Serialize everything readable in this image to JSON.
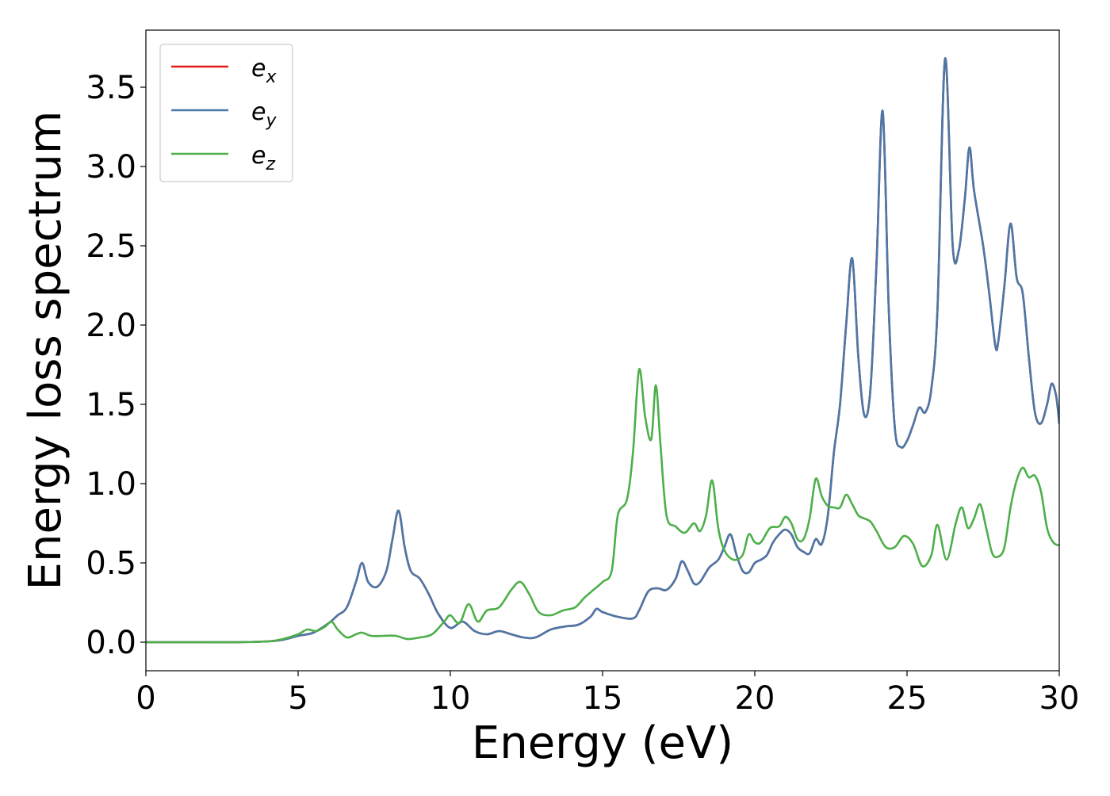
{
  "chart_data": {
    "type": "line",
    "title": "",
    "xlabel": "Energy (eV)",
    "ylabel": "Energy loss spectrum",
    "xlim": [
      0,
      30
    ],
    "ylim": [
      -0.18,
      3.86
    ],
    "xticks": [
      0,
      5,
      10,
      15,
      20,
      25,
      30
    ],
    "xtick_labels": [
      "0",
      "5",
      "10",
      "15",
      "20",
      "25",
      "30"
    ],
    "yticks": [
      0.0,
      0.5,
      1.0,
      1.5,
      2.0,
      2.5,
      3.0,
      3.5
    ],
    "ytick_labels": [
      "0.0",
      "0.5",
      "1.0",
      "1.5",
      "2.0",
      "2.5",
      "3.0",
      "3.5"
    ],
    "grid": false,
    "legend_position": "top-left",
    "series": [
      {
        "name": "e_x",
        "legend_base": "e",
        "legend_sub": "x",
        "color": "#e41a1c",
        "x": [
          0,
          1,
          2,
          3,
          4,
          4.5,
          5,
          5.5,
          6,
          6.3,
          6.6,
          6.9,
          7.1,
          7.3,
          7.6,
          7.9,
          8.1,
          8.3,
          8.5,
          8.7,
          9.0,
          9.3,
          9.6,
          10.0,
          10.4,
          10.8,
          11.2,
          11.6,
          12.0,
          12.4,
          12.8,
          13.3,
          13.8,
          14.2,
          14.6,
          14.8,
          15.0,
          15.5,
          16.0,
          16.2,
          16.5,
          16.8,
          17.1,
          17.4,
          17.6,
          17.8,
          18.0,
          18.2,
          18.5,
          18.8,
          19.0,
          19.2,
          19.4,
          19.6,
          19.8,
          20.0,
          20.2,
          20.4,
          20.6,
          20.8,
          21.0,
          21.2,
          21.4,
          21.6,
          21.8,
          22.0,
          22.2,
          22.4,
          22.6,
          22.8,
          23.0,
          23.2,
          23.4,
          23.6,
          23.8,
          24.0,
          24.2,
          24.4,
          24.6,
          24.8,
          25.0,
          25.2,
          25.4,
          25.6,
          25.8,
          26.0,
          26.25,
          26.5,
          26.7,
          26.9,
          27.05,
          27.2,
          27.5,
          27.7,
          27.9,
          28.0,
          28.2,
          28.4,
          28.6,
          28.8,
          29.0,
          29.2,
          29.4,
          29.6,
          29.75,
          29.9,
          30.0
        ],
        "y": [
          0.0,
          0.0,
          0.0,
          0.0,
          0.005,
          0.015,
          0.04,
          0.06,
          0.12,
          0.17,
          0.22,
          0.38,
          0.5,
          0.38,
          0.35,
          0.45,
          0.65,
          0.83,
          0.6,
          0.45,
          0.4,
          0.3,
          0.18,
          0.09,
          0.13,
          0.07,
          0.05,
          0.07,
          0.05,
          0.03,
          0.03,
          0.08,
          0.1,
          0.11,
          0.16,
          0.21,
          0.19,
          0.16,
          0.15,
          0.2,
          0.32,
          0.34,
          0.33,
          0.4,
          0.51,
          0.45,
          0.37,
          0.38,
          0.47,
          0.52,
          0.6,
          0.68,
          0.55,
          0.45,
          0.44,
          0.5,
          0.52,
          0.55,
          0.63,
          0.68,
          0.71,
          0.68,
          0.6,
          0.57,
          0.56,
          0.65,
          0.62,
          0.8,
          1.2,
          1.5,
          2.0,
          2.42,
          1.8,
          1.43,
          1.6,
          2.4,
          3.35,
          2.1,
          1.35,
          1.23,
          1.27,
          1.37,
          1.48,
          1.45,
          1.6,
          2.1,
          3.68,
          2.5,
          2.47,
          2.8,
          3.12,
          2.85,
          2.5,
          2.2,
          1.87,
          1.9,
          2.25,
          2.64,
          2.3,
          2.2,
          1.8,
          1.45,
          1.38,
          1.5,
          1.63,
          1.55,
          1.38
        ]
      },
      {
        "name": "e_y",
        "legend_base": "e",
        "legend_sub": "y",
        "color": "#4a78a8",
        "x": [
          0,
          1,
          2,
          3,
          4,
          4.5,
          5,
          5.5,
          6,
          6.3,
          6.6,
          6.9,
          7.1,
          7.3,
          7.6,
          7.9,
          8.1,
          8.3,
          8.5,
          8.7,
          9.0,
          9.3,
          9.6,
          10.0,
          10.4,
          10.8,
          11.2,
          11.6,
          12.0,
          12.4,
          12.8,
          13.3,
          13.8,
          14.2,
          14.6,
          14.8,
          15.0,
          15.5,
          16.0,
          16.2,
          16.5,
          16.8,
          17.1,
          17.4,
          17.6,
          17.8,
          18.0,
          18.2,
          18.5,
          18.8,
          19.0,
          19.2,
          19.4,
          19.6,
          19.8,
          20.0,
          20.2,
          20.4,
          20.6,
          20.8,
          21.0,
          21.2,
          21.4,
          21.6,
          21.8,
          22.0,
          22.2,
          22.4,
          22.6,
          22.8,
          23.0,
          23.2,
          23.4,
          23.6,
          23.8,
          24.0,
          24.2,
          24.4,
          24.6,
          24.8,
          25.0,
          25.2,
          25.4,
          25.6,
          25.8,
          26.0,
          26.25,
          26.5,
          26.7,
          26.9,
          27.05,
          27.2,
          27.5,
          27.7,
          27.9,
          28.0,
          28.2,
          28.4,
          28.6,
          28.8,
          29.0,
          29.2,
          29.4,
          29.6,
          29.75,
          29.9,
          30.0
        ],
        "y": [
          0.0,
          0.0,
          0.0,
          0.0,
          0.005,
          0.015,
          0.04,
          0.06,
          0.12,
          0.17,
          0.22,
          0.38,
          0.5,
          0.38,
          0.35,
          0.45,
          0.65,
          0.83,
          0.6,
          0.45,
          0.4,
          0.3,
          0.18,
          0.09,
          0.13,
          0.07,
          0.05,
          0.07,
          0.05,
          0.03,
          0.03,
          0.08,
          0.1,
          0.11,
          0.16,
          0.21,
          0.19,
          0.16,
          0.15,
          0.2,
          0.32,
          0.34,
          0.33,
          0.4,
          0.51,
          0.45,
          0.37,
          0.38,
          0.47,
          0.52,
          0.6,
          0.68,
          0.55,
          0.45,
          0.44,
          0.5,
          0.52,
          0.55,
          0.63,
          0.68,
          0.71,
          0.68,
          0.6,
          0.57,
          0.56,
          0.65,
          0.62,
          0.8,
          1.2,
          1.5,
          2.0,
          2.42,
          1.8,
          1.43,
          1.6,
          2.4,
          3.35,
          2.1,
          1.35,
          1.23,
          1.27,
          1.37,
          1.48,
          1.45,
          1.6,
          2.1,
          3.68,
          2.5,
          2.47,
          2.8,
          3.12,
          2.85,
          2.5,
          2.2,
          1.87,
          1.9,
          2.25,
          2.64,
          2.3,
          2.2,
          1.8,
          1.45,
          1.38,
          1.5,
          1.63,
          1.55,
          1.38
        ]
      },
      {
        "name": "e_z",
        "legend_base": "e",
        "legend_sub": "z",
        "color": "#4daf4a",
        "x": [
          0,
          1,
          2,
          3,
          4,
          4.5,
          5,
          5.3,
          5.6,
          5.9,
          6.1,
          6.3,
          6.6,
          6.9,
          7.1,
          7.4,
          7.8,
          8.2,
          8.6,
          9.0,
          9.4,
          9.8,
          10.0,
          10.3,
          10.6,
          10.9,
          11.2,
          11.6,
          12.0,
          12.3,
          12.6,
          12.9,
          13.3,
          13.7,
          14.1,
          14.4,
          14.7,
          15.0,
          15.3,
          15.5,
          15.8,
          16.0,
          16.2,
          16.4,
          16.6,
          16.75,
          16.9,
          17.1,
          17.4,
          17.7,
          18.0,
          18.2,
          18.4,
          18.6,
          18.8,
          19.0,
          19.3,
          19.6,
          19.8,
          20.0,
          20.2,
          20.5,
          20.8,
          21.0,
          21.2,
          21.4,
          21.6,
          21.8,
          22.0,
          22.2,
          22.4,
          22.6,
          22.8,
          23.0,
          23.2,
          23.4,
          23.6,
          23.8,
          24.0,
          24.3,
          24.6,
          24.9,
          25.2,
          25.5,
          25.8,
          26.0,
          26.3,
          26.6,
          26.8,
          27.0,
          27.2,
          27.4,
          27.6,
          27.8,
          28.0,
          28.2,
          28.4,
          28.6,
          28.8,
          29.0,
          29.2,
          29.4,
          29.6,
          29.8,
          30.0
        ],
        "y": [
          0.0,
          0.0,
          0.0,
          0.0,
          0.005,
          0.02,
          0.05,
          0.08,
          0.07,
          0.1,
          0.13,
          0.08,
          0.03,
          0.05,
          0.06,
          0.04,
          0.04,
          0.04,
          0.02,
          0.03,
          0.05,
          0.13,
          0.17,
          0.12,
          0.24,
          0.13,
          0.2,
          0.22,
          0.33,
          0.38,
          0.3,
          0.19,
          0.17,
          0.2,
          0.22,
          0.28,
          0.33,
          0.38,
          0.45,
          0.8,
          0.9,
          1.2,
          1.72,
          1.42,
          1.28,
          1.62,
          1.25,
          0.8,
          0.73,
          0.69,
          0.75,
          0.7,
          0.8,
          1.02,
          0.72,
          0.58,
          0.52,
          0.55,
          0.68,
          0.63,
          0.63,
          0.72,
          0.73,
          0.79,
          0.75,
          0.65,
          0.65,
          0.78,
          1.03,
          0.92,
          0.86,
          0.85,
          0.85,
          0.93,
          0.87,
          0.8,
          0.78,
          0.76,
          0.7,
          0.6,
          0.6,
          0.67,
          0.62,
          0.48,
          0.55,
          0.74,
          0.52,
          0.75,
          0.85,
          0.72,
          0.78,
          0.87,
          0.72,
          0.56,
          0.54,
          0.6,
          0.85,
          1.02,
          1.1,
          1.04,
          1.05,
          0.95,
          0.72,
          0.63,
          0.61
        ]
      }
    ]
  }
}
